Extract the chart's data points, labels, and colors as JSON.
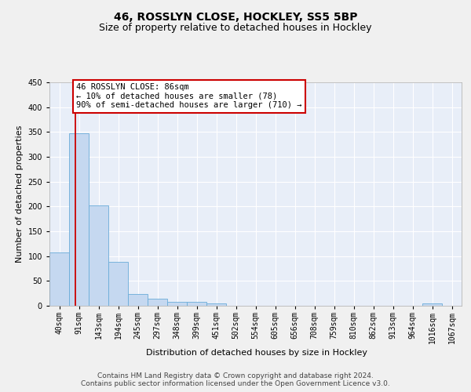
{
  "title": "46, ROSSLYN CLOSE, HOCKLEY, SS5 5BP",
  "subtitle": "Size of property relative to detached houses in Hockley",
  "xlabel": "Distribution of detached houses by size in Hockley",
  "ylabel": "Number of detached properties",
  "bin_labels": [
    "40sqm",
    "91sqm",
    "143sqm",
    "194sqm",
    "245sqm",
    "297sqm",
    "348sqm",
    "399sqm",
    "451sqm",
    "502sqm",
    "554sqm",
    "605sqm",
    "656sqm",
    "708sqm",
    "759sqm",
    "810sqm",
    "862sqm",
    "913sqm",
    "964sqm",
    "1016sqm",
    "1067sqm"
  ],
  "bar_heights": [
    107,
    348,
    202,
    88,
    24,
    15,
    8,
    8,
    4,
    0,
    0,
    0,
    0,
    0,
    0,
    0,
    0,
    0,
    0,
    4,
    0
  ],
  "bar_color": "#c5d8f0",
  "bar_edge_color": "#6aacd8",
  "background_color": "#e8eef8",
  "grid_color": "#ffffff",
  "annotation_line1": "46 ROSSLYN CLOSE: 86sqm",
  "annotation_line2": "← 10% of detached houses are smaller (78)",
  "annotation_line3": "90% of semi-detached houses are larger (710) →",
  "annotation_box_color": "#ffffff",
  "annotation_box_edge": "#cc0000",
  "red_line_x": 0.82,
  "ylim": [
    0,
    450
  ],
  "yticks": [
    0,
    50,
    100,
    150,
    200,
    250,
    300,
    350,
    400,
    450
  ],
  "footer_text": "Contains HM Land Registry data © Crown copyright and database right 2024.\nContains public sector information licensed under the Open Government Licence v3.0.",
  "title_fontsize": 10,
  "subtitle_fontsize": 9,
  "xlabel_fontsize": 8,
  "ylabel_fontsize": 8,
  "tick_fontsize": 7,
  "annotation_fontsize": 7.5,
  "footer_fontsize": 6.5,
  "fig_bg": "#f0f0f0"
}
